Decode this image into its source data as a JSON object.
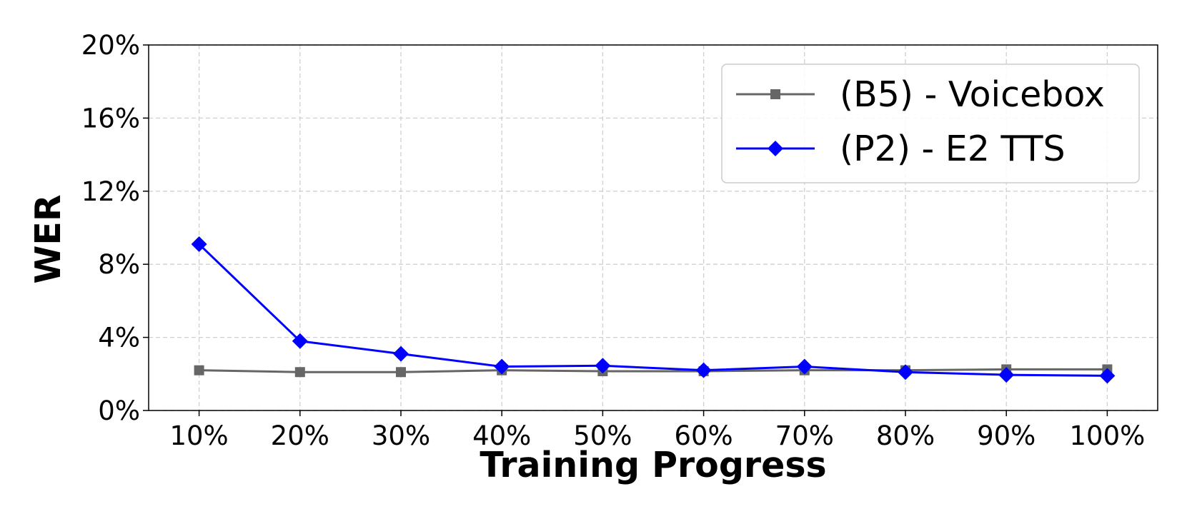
{
  "chart_data": {
    "type": "line",
    "xlabel": "Training Progress",
    "ylabel": "WER",
    "categories": [
      "10%",
      "20%",
      "30%",
      "40%",
      "50%",
      "60%",
      "70%",
      "80%",
      "90%",
      "100%"
    ],
    "yticks": [
      "0%",
      "4%",
      "8%",
      "12%",
      "16%",
      "20%"
    ],
    "ylim": [
      0,
      20
    ],
    "grid": true,
    "legend_position": "top-right",
    "series": [
      {
        "name": "(B5) - Voicebox",
        "color": "#666666",
        "marker": "square",
        "values": [
          2.2,
          2.1,
          2.1,
          2.2,
          2.15,
          2.15,
          2.2,
          2.2,
          2.25,
          2.25
        ]
      },
      {
        "name": "(P2) - E2 TTS",
        "color": "#0000ff",
        "marker": "diamond",
        "values": [
          9.1,
          3.8,
          3.1,
          2.4,
          2.45,
          2.2,
          2.4,
          2.1,
          1.95,
          1.9
        ]
      }
    ]
  }
}
